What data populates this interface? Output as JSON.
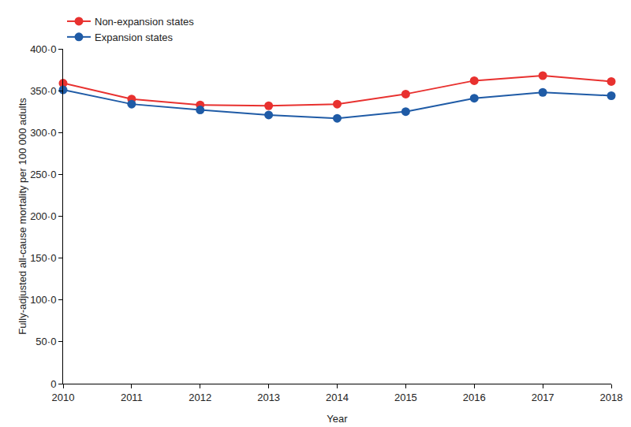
{
  "chart_data": {
    "type": "line",
    "x_label": "Year",
    "y_label": "Fully-adjusted all-cause mortality per 100 000 adults",
    "x": [
      2010,
      2011,
      2012,
      2013,
      2014,
      2015,
      2016,
      2017,
      2018
    ],
    "series": [
      {
        "name": "Non-expansion states",
        "color": "#e8312f",
        "marker": "circle",
        "line_style": "solid",
        "values": [
          359,
          340,
          333,
          332,
          334,
          346,
          362,
          368,
          361
        ]
      },
      {
        "name": "Expansion states",
        "color": "#1f5ba6",
        "marker": "circle",
        "line_style": "solid",
        "values": [
          351,
          334,
          327,
          321,
          317,
          325,
          341,
          348,
          344
        ]
      }
    ],
    "xlim": [
      2010,
      2018
    ],
    "xticks": [
      2010,
      2011,
      2012,
      2013,
      2014,
      2015,
      2016,
      2017,
      2018
    ],
    "ylim": [
      0,
      400
    ],
    "yticks": [
      0,
      {
        "value": 50,
        "label": "50·0"
      },
      {
        "value": 100,
        "label": "100·0"
      },
      {
        "value": 150,
        "label": "150·0"
      },
      {
        "value": 200,
        "label": "200·0"
      },
      {
        "value": 250,
        "label": "250·0"
      },
      {
        "value": 300,
        "label": "300·0"
      },
      {
        "value": 350,
        "label": "350·0"
      },
      {
        "value": 400,
        "label": "400·0"
      }
    ],
    "grid": false,
    "legend": "top-left"
  }
}
